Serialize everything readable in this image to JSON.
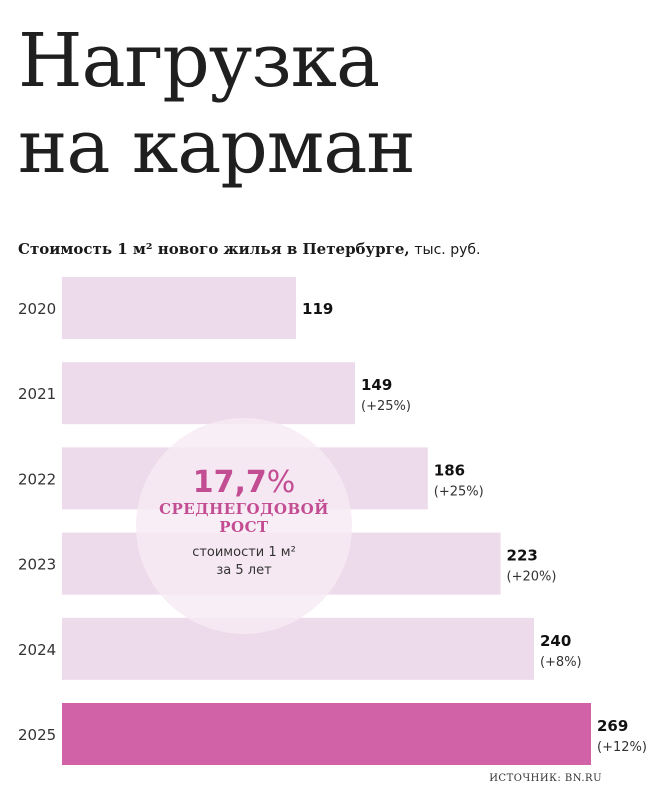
{
  "title_line1": "Нагрузка",
  "title_line2": "на карман",
  "subtitle": "Стоимость 1 м² нового жилья в Петербурге,",
  "unit": "тыс. руб.",
  "source": "ИСТОЧНИК: BN.RU",
  "callout": {
    "value": "17,7%",
    "line1": "СРЕДНЕГОДОВОЙ",
    "line2": "РОСТ",
    "line3": "стоимости 1 м²",
    "line4": "за 5 лет"
  },
  "colors": {
    "bar": "#eddaea",
    "bar_highlight": "#d162a7",
    "accent": "#c34d93",
    "circle": "#f7eaf4"
  },
  "chart_data": {
    "type": "bar",
    "orientation": "horizontal",
    "categories": [
      "2020",
      "2021",
      "2022",
      "2023",
      "2024",
      "2025"
    ],
    "values": [
      119,
      149,
      186,
      223,
      240,
      269
    ],
    "changes": [
      "",
      "(+25%)",
      "(+25%)",
      "(+20%)",
      "(+8%)",
      "(+12%)"
    ],
    "highlight": "2025",
    "xlim": [
      0,
      269
    ],
    "grid": false
  }
}
